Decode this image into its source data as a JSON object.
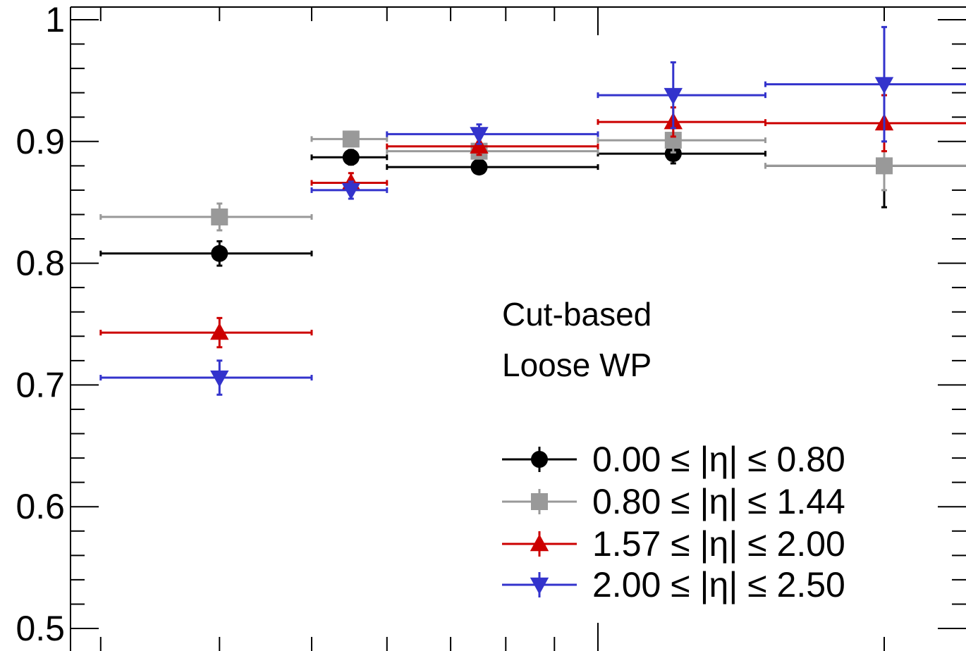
{
  "chart_data": {
    "type": "scatter",
    "title": "",
    "xlabel": "",
    "ylabel": "",
    "ylim": [
      0.5,
      1.0
    ],
    "xscale": "log",
    "yticks": [
      {
        "value": 0.5,
        "label": "0.5"
      },
      {
        "value": 0.6,
        "label": "0.6"
      },
      {
        "value": 0.7,
        "label": "0.7"
      },
      {
        "value": 0.8,
        "label": "0.8"
      },
      {
        "value": 0.9,
        "label": "0.9"
      },
      {
        "value": 1.0,
        "label": "1"
      }
    ],
    "annotation_lines": [
      "Cut-based",
      "Loose WP"
    ],
    "legend_position": "bottom-right",
    "series": [
      {
        "name": "0.00 ≤ |η| ≤ 0.80",
        "color": "#000000",
        "marker": "circle",
        "points": [
          {
            "x": 4,
            "y": 0.808,
            "ex": [
              3,
              5
            ],
            "ey": [
              0.798,
              0.818
            ]
          },
          {
            "x": 5.5,
            "y": 0.887,
            "ex": [
              5,
              6
            ],
            "ey": [
              0.881,
              0.893
            ]
          },
          {
            "x": 7.5,
            "y": 0.879,
            "ex": [
              6,
              10
            ],
            "ey": [
              0.874,
              0.884
            ]
          },
          {
            "x": 12,
            "y": 0.89,
            "ex": [
              10,
              15
            ],
            "ey": [
              0.882,
              0.898
            ]
          },
          {
            "x": 20,
            "y": 0.88,
            "ex": [
              15,
              25
            ],
            "ey": [
              0.846,
              0.914
            ]
          }
        ]
      },
      {
        "name": "0.80 ≤ |η| ≤ 1.44",
        "color": "#999999",
        "marker": "square",
        "points": [
          {
            "x": 4,
            "y": 0.838,
            "ex": [
              3,
              5
            ],
            "ey": [
              0.827,
              0.849
            ]
          },
          {
            "x": 5.5,
            "y": 0.902,
            "ex": [
              5,
              6
            ],
            "ey": [
              0.896,
              0.908
            ]
          },
          {
            "x": 7.5,
            "y": 0.892,
            "ex": [
              6,
              10
            ],
            "ey": [
              0.887,
              0.897
            ]
          },
          {
            "x": 12,
            "y": 0.901,
            "ex": [
              10,
              15
            ],
            "ey": [
              0.891,
              0.911
            ]
          },
          {
            "x": 20,
            "y": 0.88,
            "ex": [
              15,
              25
            ],
            "ey": [
              0.86,
              0.9
            ]
          }
        ]
      },
      {
        "name": "1.57 ≤ |η| ≤ 2.00",
        "color": "#cc0000",
        "marker": "triangle-up",
        "points": [
          {
            "x": 4,
            "y": 0.743,
            "ex": [
              3,
              5
            ],
            "ey": [
              0.731,
              0.755
            ]
          },
          {
            "x": 5.5,
            "y": 0.866,
            "ex": [
              5,
              6
            ],
            "ey": [
              0.858,
              0.874
            ]
          },
          {
            "x": 7.5,
            "y": 0.896,
            "ex": [
              6,
              10
            ],
            "ey": [
              0.889,
              0.903
            ]
          },
          {
            "x": 12,
            "y": 0.916,
            "ex": [
              10,
              15
            ],
            "ey": [
              0.904,
              0.928
            ]
          },
          {
            "x": 20,
            "y": 0.915,
            "ex": [
              15,
              25
            ],
            "ey": [
              0.892,
              0.938
            ]
          }
        ]
      },
      {
        "name": "2.00 ≤ |η| ≤ 2.50",
        "color": "#3333cc",
        "marker": "triangle-down",
        "points": [
          {
            "x": 4,
            "y": 0.706,
            "ex": [
              3,
              5
            ],
            "ey": [
              0.692,
              0.72
            ]
          },
          {
            "x": 5.5,
            "y": 0.86,
            "ex": [
              5,
              6
            ],
            "ey": [
              0.853,
              0.867
            ]
          },
          {
            "x": 7.5,
            "y": 0.906,
            "ex": [
              6,
              10
            ],
            "ey": [
              0.898,
              0.914
            ]
          },
          {
            "x": 12,
            "y": 0.938,
            "ex": [
              10,
              15
            ],
            "ey": [
              0.911,
              0.965
            ]
          },
          {
            "x": 20,
            "y": 0.947,
            "ex": [
              15,
              25
            ],
            "ey": [
              0.9,
              0.994
            ]
          }
        ]
      }
    ]
  }
}
